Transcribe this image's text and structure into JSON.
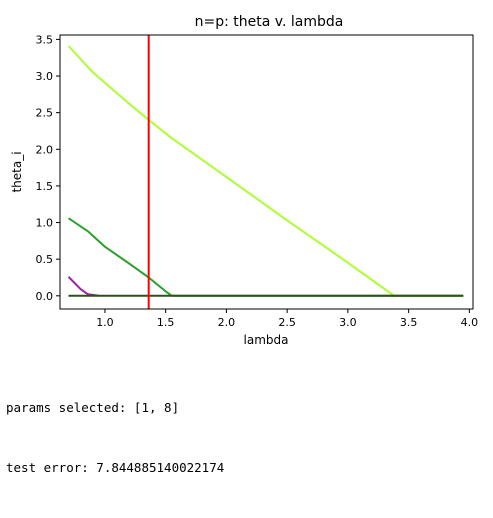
{
  "chart_data": {
    "type": "line",
    "title": "n=p: theta v. lambda",
    "xlabel": "lambda",
    "ylabel": "theta_i",
    "xlim": [
      0.63,
      4.03
    ],
    "ylim": [
      -0.18,
      3.56
    ],
    "xticks": [
      "1.0",
      "1.5",
      "2.0",
      "2.5",
      "3.0",
      "3.5",
      "4.0"
    ],
    "xtick_values": [
      1.0,
      1.5,
      2.0,
      2.5,
      3.0,
      3.5,
      4.0
    ],
    "yticks": [
      "0.0",
      "0.5",
      "1.0",
      "1.5",
      "2.0",
      "2.5",
      "3.0",
      "3.5"
    ],
    "ytick_values": [
      0.0,
      0.5,
      1.0,
      1.5,
      2.0,
      2.5,
      3.0,
      3.5
    ],
    "grid": false,
    "series": [
      {
        "color": "#adff2f",
        "x": [
          0.7,
          0.9,
          1.2,
          1.36,
          1.55,
          2.0,
          2.5,
          3.0,
          3.38,
          3.95
        ],
        "y": [
          3.41,
          3.05,
          2.62,
          2.4,
          2.15,
          1.62,
          1.03,
          0.45,
          0.0,
          0.0
        ]
      },
      {
        "color": "#2ca02c",
        "x": [
          0.7,
          0.86,
          1.0,
          1.2,
          1.36,
          1.5,
          1.55,
          3.95
        ],
        "y": [
          1.06,
          0.88,
          0.67,
          0.44,
          0.25,
          0.06,
          0.0,
          0.0
        ]
      },
      {
        "color": "#9b1fa9",
        "x": [
          0.7,
          0.8,
          0.86,
          0.95
        ],
        "y": [
          0.26,
          0.09,
          0.02,
          0.0
        ]
      },
      {
        "color": "#2f4f1f",
        "x": [
          0.7,
          3.95
        ],
        "y": [
          0.0,
          0.0
        ]
      }
    ],
    "vline": {
      "x": 1.36,
      "color": "#ff0000"
    }
  },
  "output": {
    "params_line": "params selected: [1, 8]",
    "error_line": "test error: 7.844885140022174"
  }
}
